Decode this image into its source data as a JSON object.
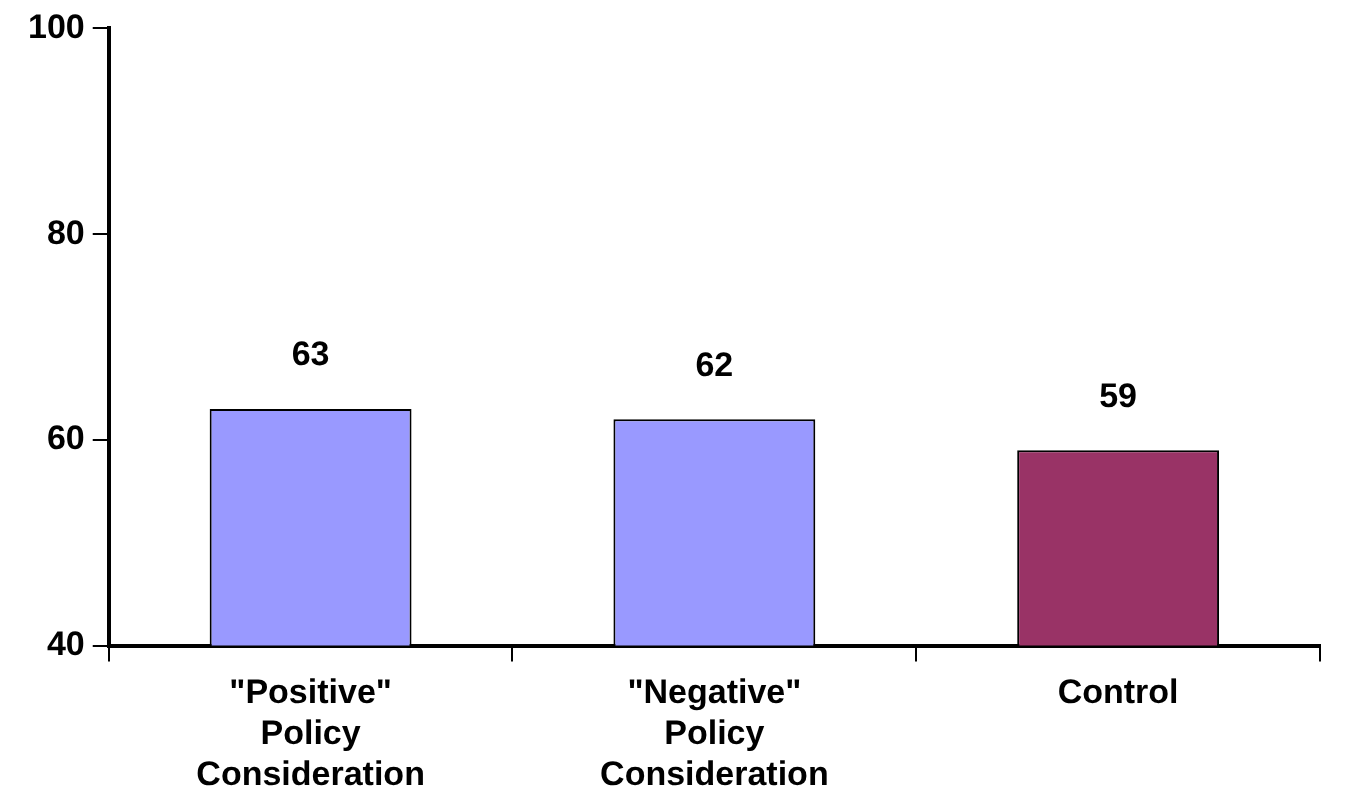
{
  "chart_data": {
    "type": "bar",
    "categories": [
      "\"Positive\" Policy Consideration",
      "\"Negative\" Policy Consideration",
      "Control"
    ],
    "values": [
      63,
      62,
      59
    ],
    "colors": [
      "#9999ff",
      "#9999ff",
      "#993366"
    ],
    "ylim": [
      40,
      100
    ],
    "yticks": [
      40,
      60,
      80,
      100
    ],
    "grid": false,
    "legend": false,
    "data_labels": true
  }
}
